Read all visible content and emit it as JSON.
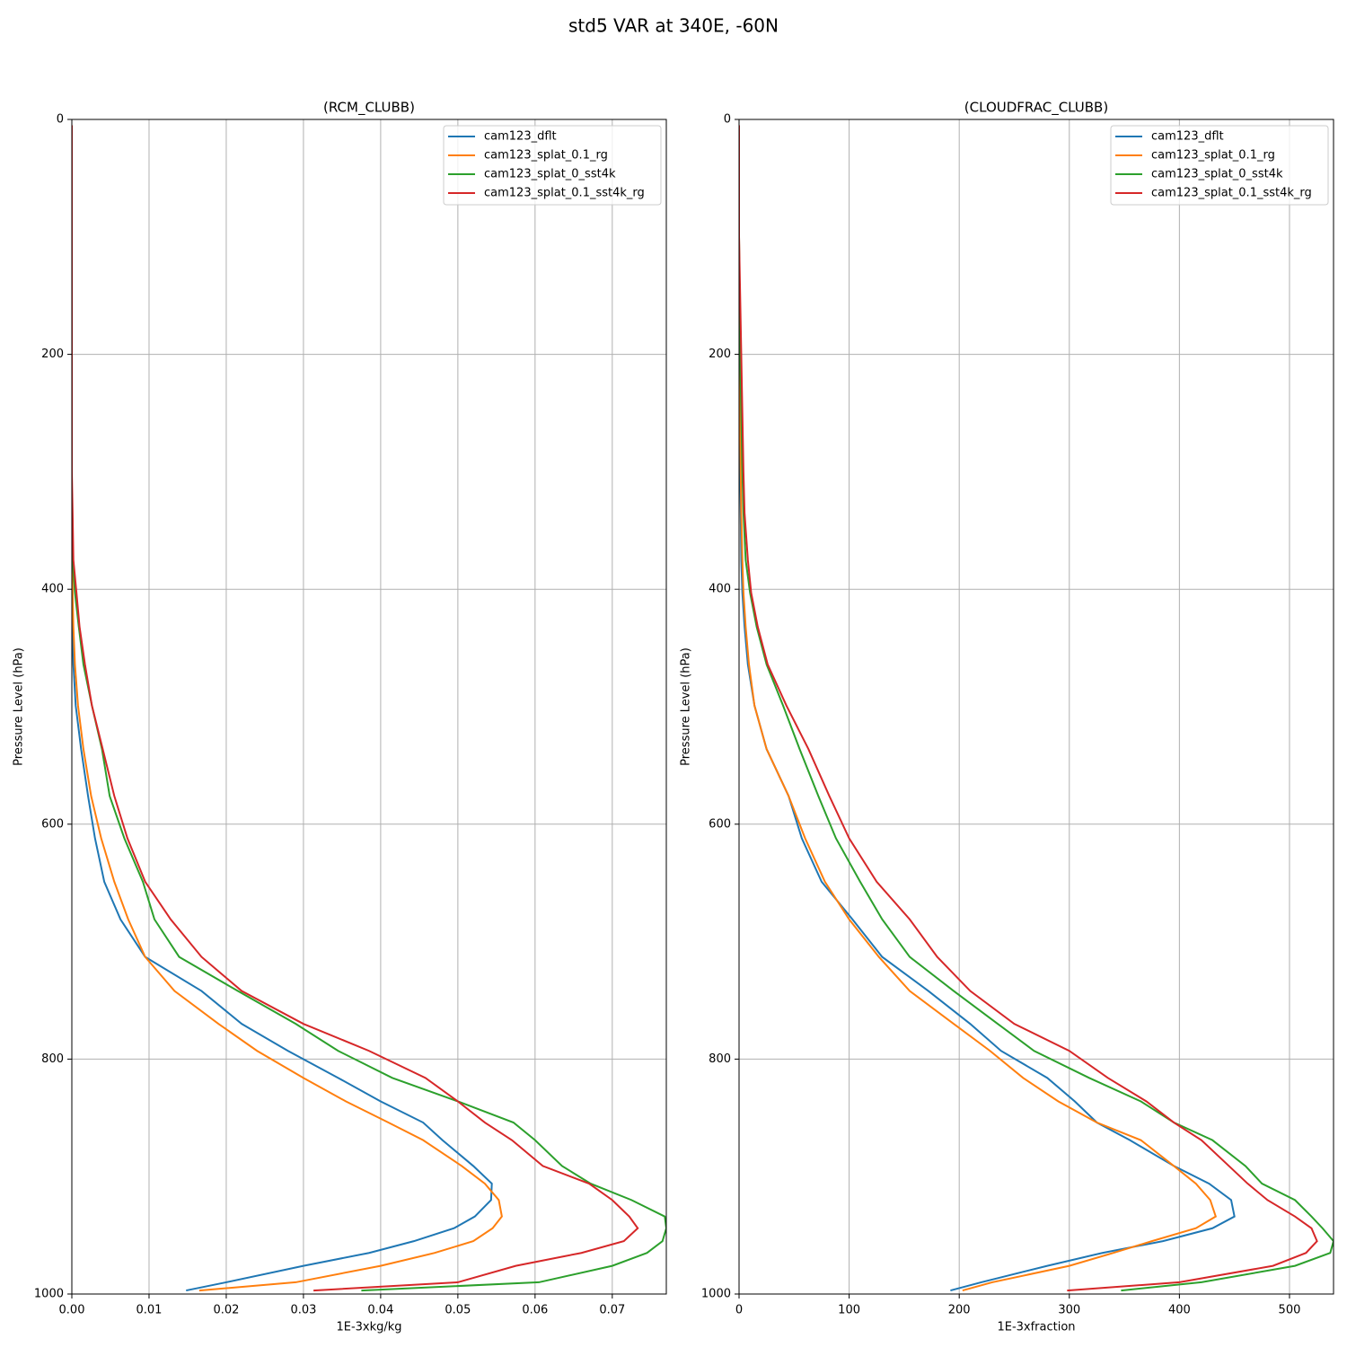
{
  "title": "std5 VAR at 340E, -60N",
  "chart_data": [
    {
      "type": "line",
      "title": "(RCM_CLUBB)",
      "xlabel": "1E-3xkg/kg",
      "ylabel": "Pressure Level (hPa)",
      "y": [
        5,
        50,
        100,
        150,
        200,
        250,
        300,
        335,
        375,
        403,
        432,
        464,
        499,
        536,
        576,
        612,
        649,
        681,
        713,
        742,
        770,
        793,
        816,
        836,
        854,
        869,
        891,
        906,
        920,
        934,
        944,
        955,
        965,
        976,
        990,
        997
      ],
      "xlim": [
        0,
        0.077
      ],
      "ylim": [
        1000,
        0
      ],
      "xticks": [
        {
          "value": 0,
          "label": "0.00"
        },
        {
          "value": 0.01,
          "label": "0.01"
        },
        {
          "value": 0.02,
          "label": "0.02"
        },
        {
          "value": 0.03,
          "label": "0.03"
        },
        {
          "value": 0.04,
          "label": "0.04"
        },
        {
          "value": 0.05,
          "label": "0.05"
        },
        {
          "value": 0.06,
          "label": "0.06"
        },
        {
          "value": 0.07,
          "label": "0.07"
        }
      ],
      "yticks": [
        0,
        200,
        400,
        600,
        800,
        1000
      ],
      "grid": true,
      "legend": "upper right",
      "series": [
        {
          "name": "cam123_dflt",
          "color": "#1f77b4",
          "values": [
            0,
            0,
            0,
            0,
            0,
            0,
            0,
            0,
            0,
            5e-05,
            0.0001,
            0.0002,
            0.0005,
            0.0012,
            0.0021,
            0.003,
            0.0042,
            0.0063,
            0.0095,
            0.0168,
            0.022,
            0.028,
            0.0345,
            0.04,
            0.0455,
            0.048,
            0.052,
            0.0544,
            0.0543,
            0.0522,
            0.0495,
            0.0443,
            0.0385,
            0.03,
            0.02,
            0.0148
          ]
        },
        {
          "name": "cam123_splat_0.1_rg",
          "color": "#ff7f0e",
          "values": [
            0,
            0,
            0,
            0,
            0,
            0,
            0,
            0,
            5e-05,
            0.0001,
            0.0002,
            0.0004,
            0.0008,
            0.0015,
            0.0025,
            0.0038,
            0.0055,
            0.0073,
            0.0095,
            0.0133,
            0.019,
            0.024,
            0.03,
            0.0355,
            0.041,
            0.0455,
            0.0505,
            0.0535,
            0.0553,
            0.0557,
            0.0545,
            0.052,
            0.047,
            0.04,
            0.029,
            0.0165
          ]
        },
        {
          "name": "cam123_splat_0_sst4k",
          "color": "#2ca02c",
          "values": [
            0,
            0,
            0,
            0,
            0,
            0,
            0,
            0,
            0.0001,
            0.0004,
            0.0009,
            0.0015,
            0.0026,
            0.0039,
            0.0049,
            0.0068,
            0.0092,
            0.0107,
            0.0139,
            0.0215,
            0.029,
            0.0345,
            0.0415,
            0.05,
            0.0572,
            0.06,
            0.0635,
            0.0672,
            0.0725,
            0.0768,
            0.077,
            0.0765,
            0.0745,
            0.07,
            0.0605,
            0.0375
          ]
        },
        {
          "name": "cam123_splat_0.1_sst4k_rg",
          "color": "#d62728",
          "values": [
            0,
            0,
            0,
            0,
            0,
            0,
            0,
            0.0001,
            0.0002,
            0.0006,
            0.001,
            0.0017,
            0.0026,
            0.004,
            0.0055,
            0.0072,
            0.0095,
            0.0128,
            0.0168,
            0.022,
            0.03,
            0.0385,
            0.0458,
            0.05,
            0.0535,
            0.057,
            0.061,
            0.067,
            0.07,
            0.0722,
            0.0733,
            0.0715,
            0.066,
            0.0575,
            0.05,
            0.0313
          ]
        }
      ]
    },
    {
      "type": "line",
      "title": "(CLOUDFRAC_CLUBB)",
      "xlabel": "1E-3xfraction",
      "ylabel": "Pressure Level (hPa)",
      "y": [
        5,
        50,
        100,
        150,
        200,
        250,
        300,
        335,
        375,
        403,
        432,
        464,
        499,
        536,
        576,
        612,
        649,
        681,
        713,
        742,
        770,
        793,
        816,
        836,
        854,
        869,
        891,
        906,
        920,
        934,
        944,
        955,
        965,
        976,
        990,
        997
      ],
      "xlim": [
        0,
        540
      ],
      "ylim": [
        1000,
        0
      ],
      "xticks": [
        0,
        100,
        200,
        300,
        400,
        500
      ],
      "yticks": [
        0,
        200,
        400,
        600,
        800,
        1000
      ],
      "grid": true,
      "legend": "upper right",
      "series": [
        {
          "name": "cam123_dflt",
          "color": "#1f77b4",
          "values": [
            0,
            0,
            0,
            0.1,
            0.3,
            0.5,
            1,
            1.5,
            2,
            3,
            5,
            8,
            14,
            25,
            45,
            57,
            75,
            103,
            130,
            172,
            210,
            238,
            280,
            305,
            325,
            355,
            395,
            427,
            447,
            450,
            430,
            385,
            330,
            280,
            220,
            192
          ]
        },
        {
          "name": "cam123_splat_0.1_rg",
          "color": "#ff7f0e",
          "values": [
            0,
            0,
            0,
            0.2,
            0.5,
            1,
            1.5,
            2,
            3,
            4,
            6,
            9,
            14,
            25,
            45,
            60,
            78,
            100,
            127,
            155,
            195,
            228,
            258,
            290,
            325,
            365,
            395,
            415,
            428,
            433,
            415,
            375,
            340,
            300,
            230,
            203
          ]
        },
        {
          "name": "cam123_splat_0_sst4k",
          "color": "#2ca02c",
          "values": [
            0,
            0,
            0,
            0.5,
            1,
            2,
            3,
            4,
            6,
            10,
            16,
            25,
            40,
            55,
            72,
            88,
            110,
            130,
            155,
            195,
            235,
            268,
            318,
            365,
            395,
            430,
            460,
            475,
            505,
            520,
            530,
            540,
            537,
            505,
            420,
            347
          ]
        },
        {
          "name": "cam123_splat_0.1_sst4k_rg",
          "color": "#d62728",
          "values": [
            0,
            0,
            0,
            1,
            2,
            3,
            4,
            5,
            8,
            11,
            17,
            26,
            43,
            63,
            82,
            100,
            125,
            155,
            180,
            210,
            250,
            300,
            335,
            370,
            395,
            420,
            445,
            462,
            480,
            505,
            520,
            525,
            515,
            485,
            400,
            298
          ]
        }
      ]
    }
  ]
}
